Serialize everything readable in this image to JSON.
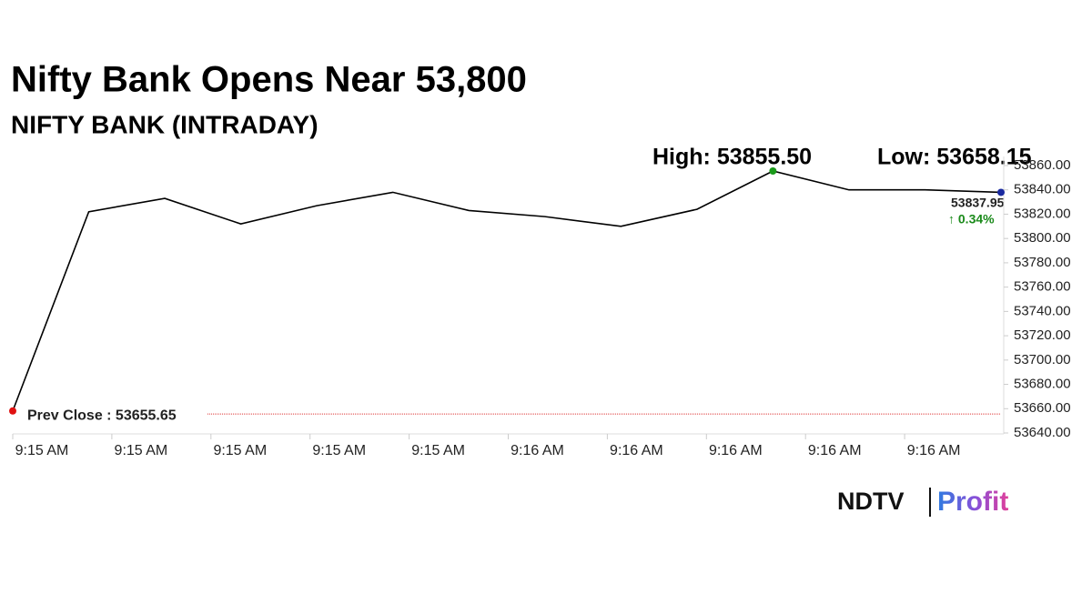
{
  "chart_data": {
    "type": "line",
    "title": "Nifty Bank Opens Near 53,800",
    "subtitle": "NIFTY BANK (INTRADAY)",
    "x_labels": [
      "9:15 AM",
      "9:15 AM",
      "9:15 AM",
      "9:15 AM",
      "9:15 AM",
      "9:16 AM",
      "9:16 AM",
      "9:16 AM",
      "9:16 AM",
      "9:16 AM"
    ],
    "values": [
      53658.15,
      53822,
      53833,
      53812,
      53827,
      53838,
      53823,
      53818,
      53810,
      53824,
      53855.5,
      53840,
      53840,
      53837.95
    ],
    "color": "#000000",
    "ylim": [
      53640,
      53860
    ],
    "yticks": [
      {
        "value": 53640,
        "label": "53640.00"
      },
      {
        "value": 53660,
        "label": "53660.00"
      },
      {
        "value": 53680,
        "label": "53680.00"
      },
      {
        "value": 53700,
        "label": "53700.00"
      },
      {
        "value": 53720,
        "label": "53720.00"
      },
      {
        "value": 53740,
        "label": "53740.00"
      },
      {
        "value": 53760,
        "label": "53760.00"
      },
      {
        "value": 53780,
        "label": "53780.00"
      },
      {
        "value": 53800,
        "label": "53800.00"
      },
      {
        "value": 53820,
        "label": "53820.00"
      },
      {
        "value": 53840,
        "label": "53840.00"
      },
      {
        "value": 53860,
        "label": "53860.00"
      }
    ],
    "high": {
      "value": 53855.5,
      "label": "High: 53855.50"
    },
    "low": {
      "value": 53658.15,
      "label": "Low: 53658.15"
    },
    "prev_close": {
      "value": 53655.65,
      "label": "Prev Close : 53655.65"
    },
    "last": {
      "value": 53837.95,
      "label": "53837.95"
    },
    "change": "↑ 0.34%",
    "logo": {
      "left": "NDTV",
      "right": "Profit"
    }
  }
}
